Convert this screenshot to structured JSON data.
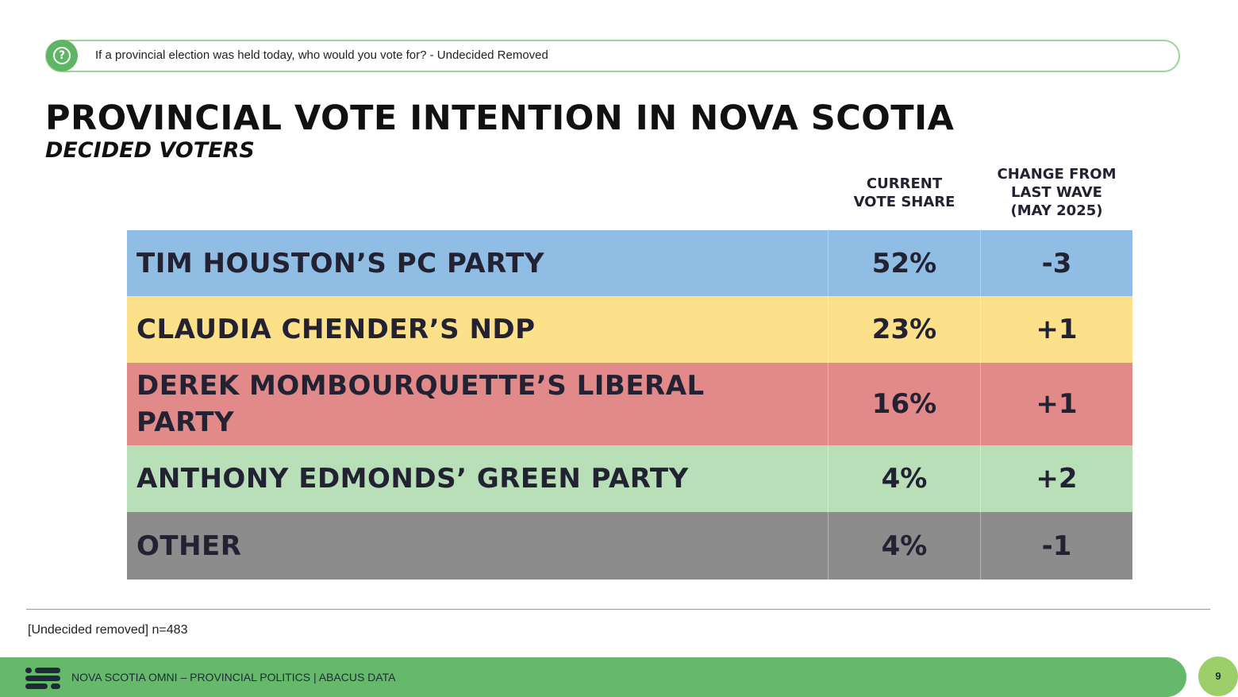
{
  "question": {
    "icon": "question-circle-icon",
    "text": "If a provincial election was held today, who would you vote for?  - Undecided Removed"
  },
  "chart_data": {
    "type": "table",
    "title": "PROVINCIAL VOTE INTENTION IN NOVA SCOTIA",
    "subtitle": "DECIDED VOTERS",
    "columns": {
      "current": [
        "CURRENT",
        "VOTE SHARE"
      ],
      "change": [
        "CHANGE FROM",
        "LAST WAVE",
        "(MAY 2025)"
      ]
    },
    "rows": [
      {
        "party": "TIM HOUSTON’S PC PARTY",
        "vote_share": "52%",
        "change": "-3",
        "value": 52,
        "delta": -3,
        "color": "#8fbde3"
      },
      {
        "party": "CLAUDIA CHENDER’S NDP",
        "vote_share": "23%",
        "change": "+1",
        "value": 23,
        "delta": 1,
        "color": "#fce08a"
      },
      {
        "party": "DEREK MOMBOURQUETTE’S LIBERAL PARTY",
        "vote_share": "16%",
        "change": "+1",
        "value": 16,
        "delta": 1,
        "color": "#e2898a"
      },
      {
        "party": "ANTHONY EDMONDS’ GREEN PARTY",
        "vote_share": "4%",
        "change": "+2",
        "value": 4,
        "delta": 2,
        "color": "#b9dfb8"
      },
      {
        "party": "OTHER",
        "vote_share": "4%",
        "change": "-1",
        "value": 4,
        "delta": -1,
        "color": "#8c8c8c"
      }
    ]
  },
  "footnote": "[Undecided removed] n=483",
  "footer": {
    "logo": "abacus-logo-icon",
    "text": "NOVA SCOTIA OMNI – PROVINCIAL POLITICS | ABACUS DATA",
    "page_number": "9"
  }
}
